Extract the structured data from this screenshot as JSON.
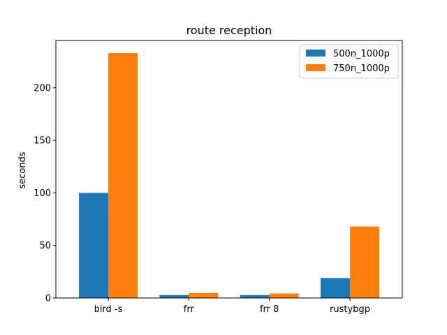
{
  "chart_data": {
    "type": "bar",
    "title": "route reception",
    "xlabel": "",
    "ylabel": "seconds",
    "categories": [
      "bird -s",
      "frr",
      "frr 8",
      "rustybgp"
    ],
    "series": [
      {
        "name": "500n_1000p",
        "values": [
          100,
          2.8,
          2.8,
          19
        ],
        "color": "#1f77b4"
      },
      {
        "name": "750n_1000p",
        "values": [
          233,
          4.8,
          4.3,
          68
        ],
        "color": "#ff7f0e"
      }
    ],
    "ylim": [
      0,
      245
    ],
    "yticks": [
      0,
      50,
      100,
      150,
      200
    ],
    "grid": false,
    "legend_position": "top-right"
  }
}
